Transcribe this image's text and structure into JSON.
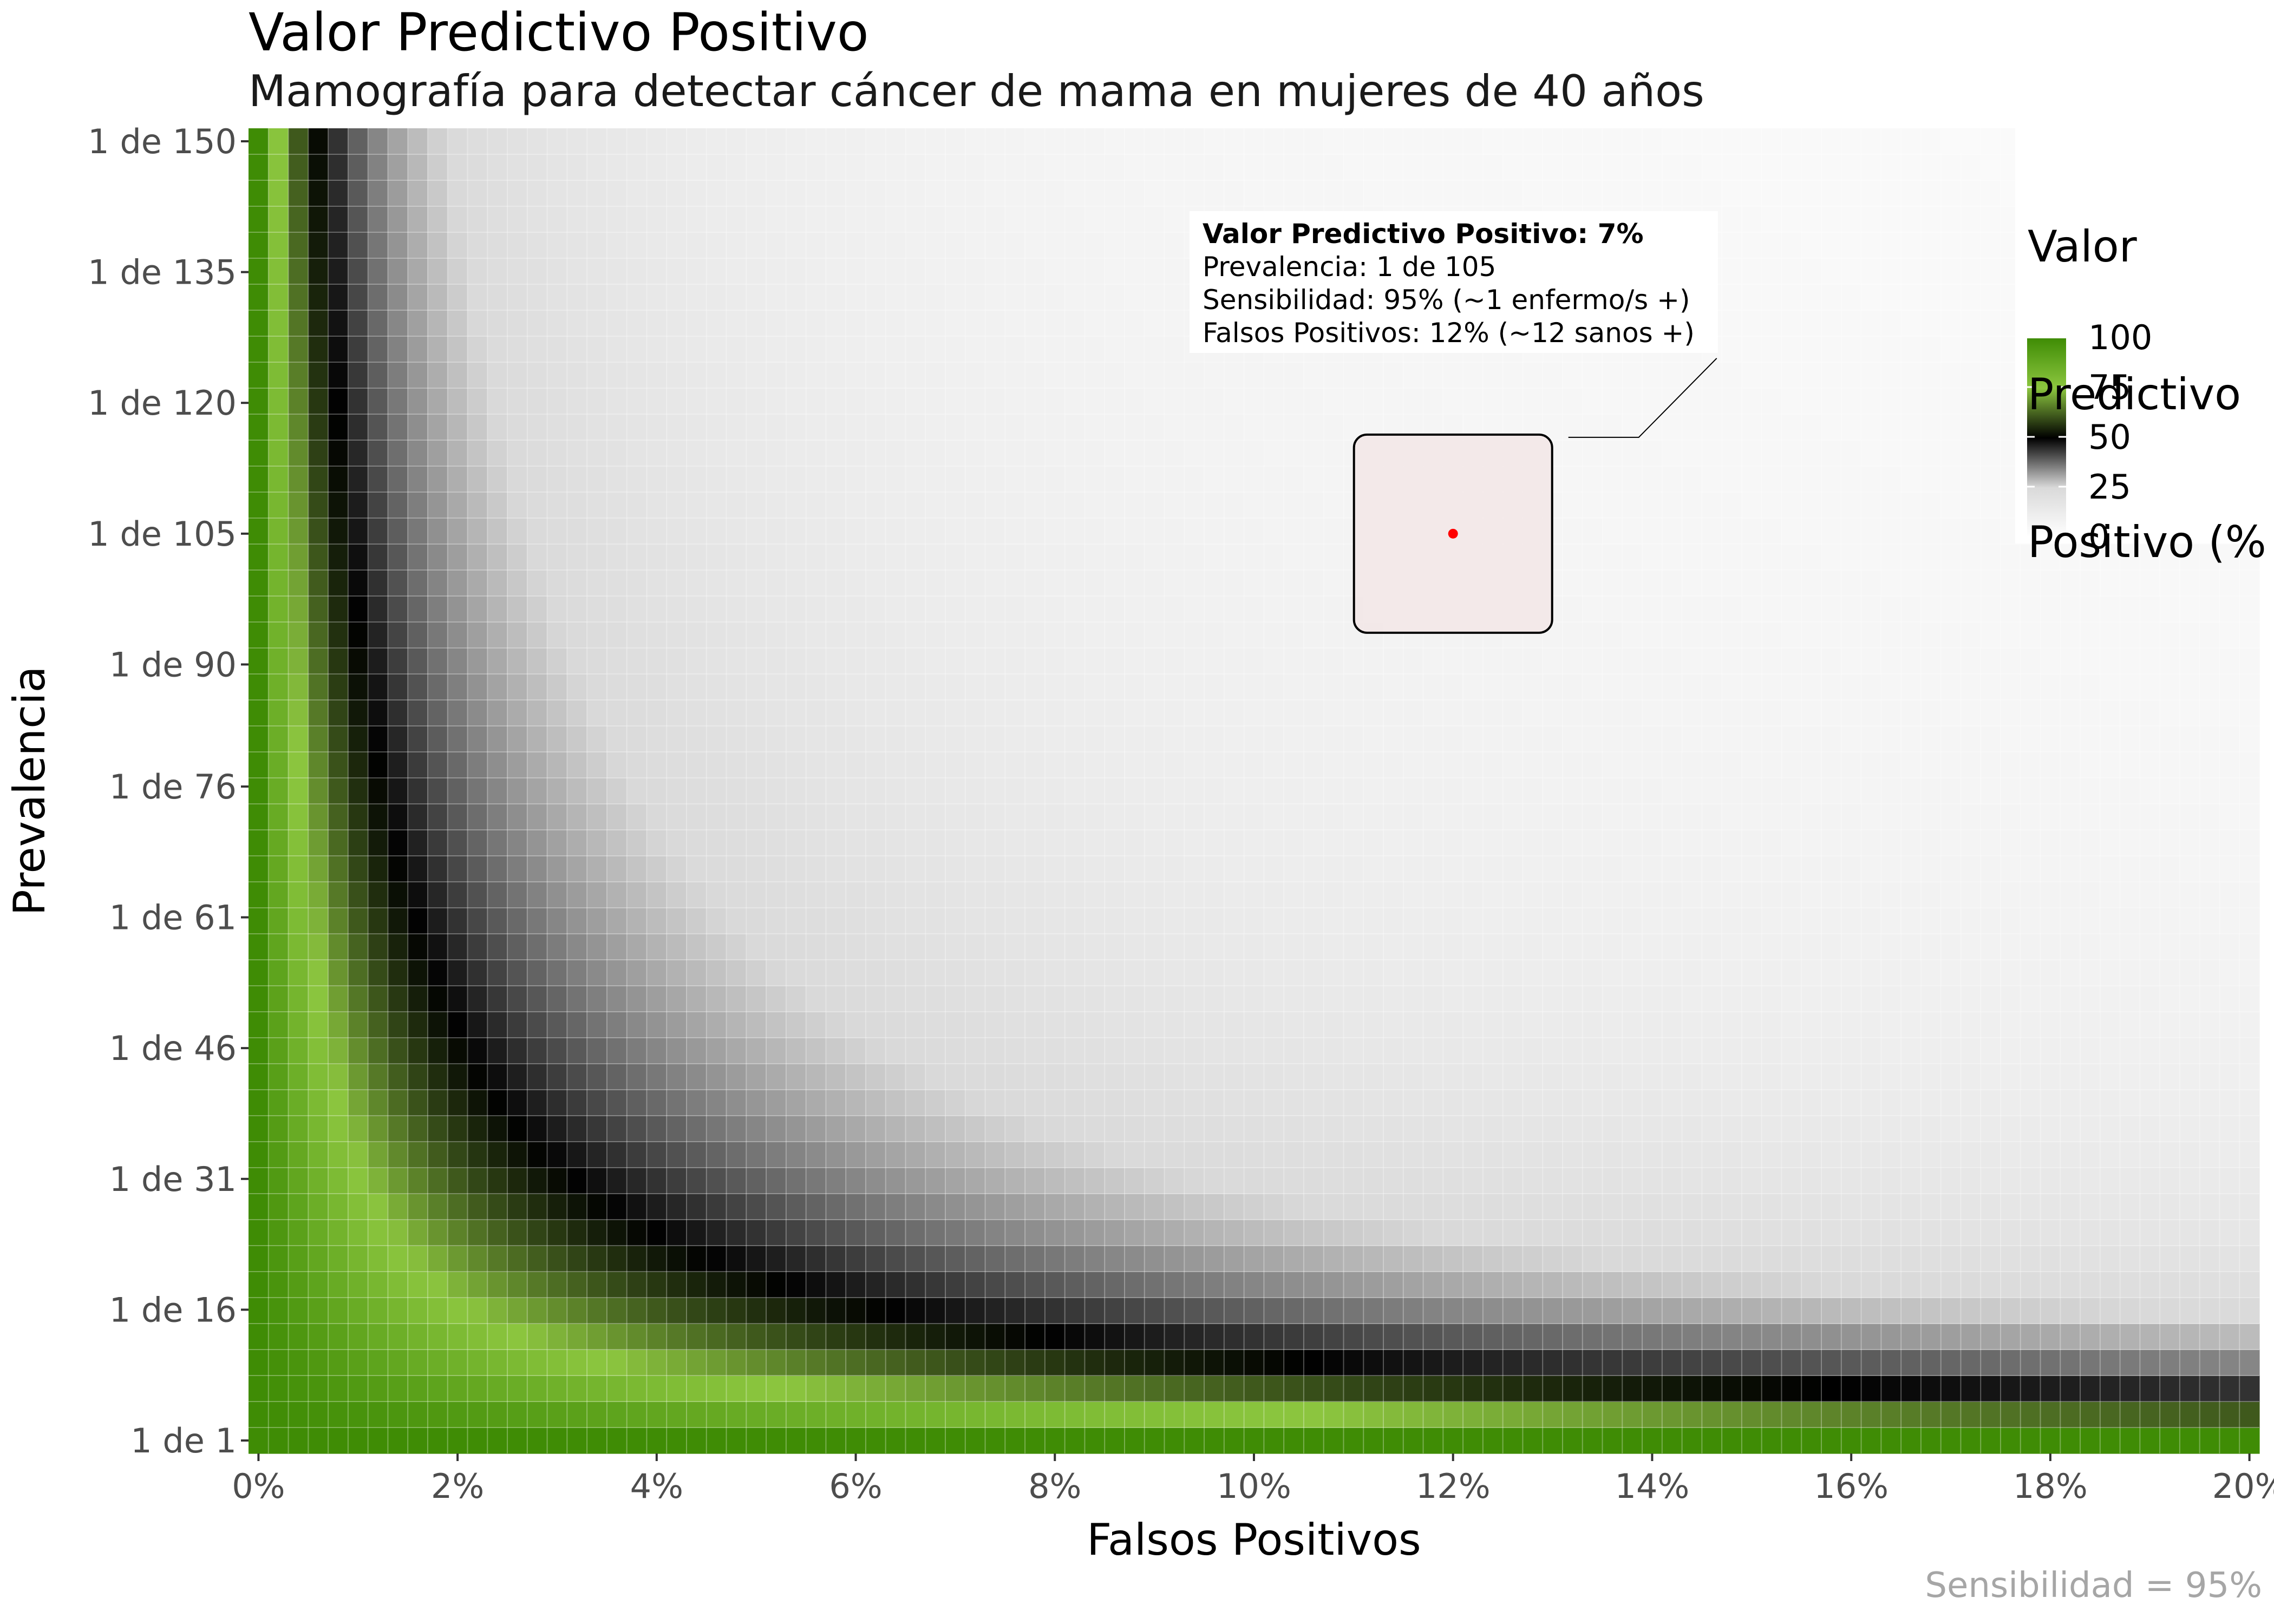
{
  "title": "Valor Predictivo Positivo",
  "subtitle": "Mamografía para detectar cáncer de mama en mujeres de 40 años",
  "caption": "Sensibilidad = 95%",
  "tooltip": {
    "headline": "Valor Predictivo Positivo: 7%",
    "prevalence": "Prevalencia: 1 de 105",
    "sensitivity": "Sensibilidad: 95% (~1 enfermo/s +)",
    "false_positives": "Falsos Positivos: 12% (~12 sanos +)"
  },
  "colors": {
    "low": "#ffffff",
    "mid_low": "#d9d9d9",
    "mid": "#000000",
    "mid_high": "#8cc63f",
    "high": "#3f8c05",
    "point": "#ff0000",
    "highlight_fill": "#f2e6e6"
  },
  "chart_data": {
    "type": "heatmap",
    "title": "Valor Predictivo Positivo",
    "subtitle": "Mamografía para detectar cáncer de mama en mujeres de 40 años",
    "xlabel": "Falsos Positivos",
    "ylabel": "Prevalencia",
    "x_unit": "%",
    "xlim": [
      0,
      20
    ],
    "x_step": 0.2,
    "x_ticks": [
      0,
      2,
      4,
      6,
      8,
      10,
      12,
      14,
      16,
      18,
      20
    ],
    "x_tick_labels": [
      "0%",
      "2%",
      "4%",
      "6%",
      "8%",
      "10%",
      "12%",
      "14%",
      "16%",
      "18%",
      "20%"
    ],
    "ylim": [
      1,
      150
    ],
    "y_step": 3,
    "y_ticks": [
      1,
      16,
      31,
      46,
      61,
      76,
      90,
      105,
      120,
      135,
      150
    ],
    "y_tick_labels": [
      "1 de 1",
      "1 de 16",
      "1 de 31",
      "1 de 46",
      "1 de 61",
      "1 de 76",
      "1 de 90",
      "1 de 105",
      "1 de 120",
      "1 de 135",
      "1 de 150"
    ],
    "sensitivity": 0.95,
    "legend": {
      "title": [
        "Valor",
        "Predictivo",
        "Positivo (%"
      ],
      "ticks": [
        100,
        75,
        50,
        25,
        0
      ],
      "position": "right"
    },
    "highlight": {
      "false_positives": 12,
      "prevalence": 105,
      "ppv": 7
    }
  }
}
